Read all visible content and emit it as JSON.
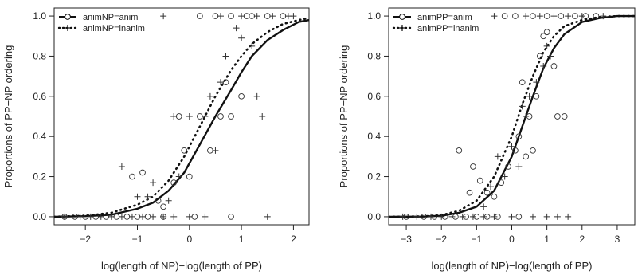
{
  "chart_data": [
    {
      "type": "scatter",
      "xlabel": "log(length of NP)−log(length of PP)",
      "ylabel": "Proportions of PP−NP ordering",
      "xlim": [
        -2.6,
        2.3
      ],
      "ylim": [
        -0.04,
        1.04
      ],
      "xticks": [
        -2,
        -1,
        0,
        1,
        2
      ],
      "xtick_labels": [
        "−2",
        "−1",
        "0",
        "1",
        "2"
      ],
      "yticks": [
        0.0,
        0.2,
        0.4,
        0.6,
        0.8,
        1.0
      ],
      "ytick_labels": [
        "0.0",
        "0.2",
        "0.4",
        "0.6",
        "0.8",
        "1.0"
      ],
      "legend": {
        "position": "top-left",
        "entries": [
          "animNP=anim",
          "animNP=inanim"
        ]
      },
      "series": [
        {
          "name": "animNP=anim",
          "marker": "circle",
          "line": "solid",
          "points": [
            [
              -2.4,
              0
            ],
            [
              -2.2,
              0
            ],
            [
              -2.0,
              0
            ],
            [
              -1.8,
              0
            ],
            [
              -1.6,
              0
            ],
            [
              -1.4,
              0
            ],
            [
              -1.2,
              0
            ],
            [
              -1.0,
              0
            ],
            [
              -0.8,
              0
            ],
            [
              -0.5,
              0
            ],
            [
              0.1,
              0
            ],
            [
              0.8,
              0
            ],
            [
              -1.1,
              0.2
            ],
            [
              -0.9,
              0.22
            ],
            [
              -0.6,
              0.08
            ],
            [
              -0.3,
              0.17
            ],
            [
              0.0,
              0.2
            ],
            [
              0.2,
              0.5
            ],
            [
              0.4,
              0.33
            ],
            [
              0.6,
              0.5
            ],
            [
              0.8,
              0.5
            ],
            [
              1.0,
              0.6
            ],
            [
              0.7,
              0.67
            ],
            [
              -0.2,
              0.5
            ],
            [
              -0.1,
              0.33
            ],
            [
              -0.5,
              0.05
            ],
            [
              0.2,
              1
            ],
            [
              0.5,
              1
            ],
            [
              0.8,
              1
            ],
            [
              1.1,
              1
            ],
            [
              1.2,
              1
            ],
            [
              1.5,
              1
            ],
            [
              1.8,
              1
            ]
          ],
          "curve": {
            "x": [
              -2.6,
              -2.0,
              -1.5,
              -1.0,
              -0.7,
              -0.4,
              -0.1,
              0.2,
              0.5,
              0.8,
              1.0,
              1.2,
              1.5,
              1.8,
              2.1,
              2.3
            ],
            "y": [
              0.0,
              0.003,
              0.01,
              0.04,
              0.07,
              0.13,
              0.22,
              0.36,
              0.5,
              0.63,
              0.72,
              0.8,
              0.88,
              0.93,
              0.97,
              0.98
            ]
          }
        },
        {
          "name": "animNP=inanim",
          "marker": "plus",
          "line": "dotted",
          "points": [
            [
              -2.4,
              0
            ],
            [
              -2.1,
              0
            ],
            [
              -1.9,
              0
            ],
            [
              -1.7,
              0
            ],
            [
              -1.5,
              0
            ],
            [
              -1.3,
              0
            ],
            [
              -1.1,
              0
            ],
            [
              -0.9,
              0
            ],
            [
              -0.7,
              0
            ],
            [
              -0.5,
              0
            ],
            [
              -0.3,
              0
            ],
            [
              0,
              0
            ],
            [
              0.3,
              0
            ],
            [
              1.5,
              0
            ],
            [
              -1.3,
              0.25
            ],
            [
              -1.0,
              0.1
            ],
            [
              -0.7,
              0.17
            ],
            [
              -0.4,
              0.08
            ],
            [
              -0.2,
              0.2
            ],
            [
              -0.3,
              0.5
            ],
            [
              0.0,
              0.5
            ],
            [
              0.3,
              0.5
            ],
            [
              0.5,
              0.33
            ],
            [
              0.4,
              0.6
            ],
            [
              0.7,
              0.8
            ],
            [
              0.9,
              0.94
            ],
            [
              1.0,
              0.89
            ],
            [
              1.2,
              0.85
            ],
            [
              1.3,
              0.6
            ],
            [
              1.4,
              0.5
            ],
            [
              0.6,
              0.67
            ],
            [
              -0.8,
              0.1
            ],
            [
              -0.5,
              1
            ],
            [
              0.6,
              1
            ],
            [
              1.0,
              1
            ],
            [
              1.3,
              1
            ],
            [
              1.6,
              1
            ],
            [
              1.9,
              1
            ],
            [
              2.0,
              1
            ]
          ],
          "curve": {
            "x": [
              -2.6,
              -2.0,
              -1.5,
              -1.0,
              -0.7,
              -0.4,
              -0.1,
              0.2,
              0.5,
              0.8,
              1.0,
              1.2,
              1.5,
              1.8,
              2.1,
              2.3
            ],
            "y": [
              0.0,
              0.005,
              0.02,
              0.06,
              0.1,
              0.18,
              0.3,
              0.45,
              0.6,
              0.73,
              0.8,
              0.86,
              0.92,
              0.96,
              0.98,
              0.99
            ]
          }
        }
      ]
    },
    {
      "type": "scatter",
      "xlabel": "log(length of NP)−log(length of PP)",
      "ylabel": "Proportions of PP−NP ordering",
      "xlim": [
        -3.5,
        3.5
      ],
      "ylim": [
        -0.04,
        1.04
      ],
      "xticks": [
        -3,
        -2,
        -1,
        0,
        1,
        2,
        3
      ],
      "xtick_labels": [
        "−3",
        "−2",
        "−1",
        "0",
        "1",
        "2",
        "3"
      ],
      "yticks": [
        0.0,
        0.2,
        0.4,
        0.6,
        0.8,
        1.0
      ],
      "ytick_labels": [
        "0.0",
        "0.2",
        "0.4",
        "0.6",
        "0.8",
        "1.0"
      ],
      "legend": {
        "position": "top-left",
        "entries": [
          "animPP=anim",
          "animPP=inanim"
        ]
      },
      "series": [
        {
          "name": "animPP=anim",
          "marker": "circle",
          "line": "solid",
          "points": [
            [
              -3.0,
              0
            ],
            [
              -2.5,
              0
            ],
            [
              -2.2,
              0
            ],
            [
              -1.9,
              0
            ],
            [
              -1.6,
              0
            ],
            [
              -1.3,
              0
            ],
            [
              -1.0,
              0
            ],
            [
              -0.7,
              0
            ],
            [
              -0.4,
              0
            ],
            [
              0.2,
              0
            ],
            [
              -1.5,
              0.33
            ],
            [
              -1.1,
              0.25
            ],
            [
              -0.9,
              0.18
            ],
            [
              -1.2,
              0.12
            ],
            [
              -0.7,
              0.12
            ],
            [
              -0.5,
              0.1
            ],
            [
              -0.3,
              0.17
            ],
            [
              -0.1,
              0.25
            ],
            [
              0.1,
              0.33
            ],
            [
              0.2,
              0.4
            ],
            [
              0.4,
              0.3
            ],
            [
              0.5,
              0.5
            ],
            [
              0.7,
              0.6
            ],
            [
              0.8,
              0.8
            ],
            [
              0.9,
              0.9
            ],
            [
              1.0,
              0.92
            ],
            [
              1.2,
              0.75
            ],
            [
              1.3,
              0.5
            ],
            [
              1.5,
              0.5
            ],
            [
              0.6,
              0.33
            ],
            [
              0.3,
              0.67
            ],
            [
              -0.2,
              1
            ],
            [
              0.1,
              1
            ],
            [
              0.6,
              1
            ],
            [
              1.0,
              1
            ],
            [
              1.4,
              1
            ],
            [
              1.8,
              1
            ],
            [
              2.1,
              1
            ],
            [
              2.4,
              1
            ]
          ],
          "curve": {
            "x": [
              -3.5,
              -2.5,
              -2.0,
              -1.5,
              -1.0,
              -0.5,
              0.0,
              0.3,
              0.6,
              0.9,
              1.2,
              1.5,
              2.0,
              2.5,
              3.0,
              3.5
            ],
            "y": [
              0.0,
              0.001,
              0.005,
              0.02,
              0.05,
              0.13,
              0.3,
              0.45,
              0.6,
              0.74,
              0.84,
              0.91,
              0.97,
              0.99,
              1.0,
              1.0
            ]
          }
        },
        {
          "name": "animPP=inanim",
          "marker": "plus",
          "line": "dotted",
          "points": [
            [
              -3.1,
              0
            ],
            [
              -2.7,
              0
            ],
            [
              -2.3,
              0
            ],
            [
              -2.0,
              0
            ],
            [
              -1.7,
              0
            ],
            [
              -1.4,
              0
            ],
            [
              -1.1,
              0
            ],
            [
              -0.8,
              0
            ],
            [
              -0.5,
              0
            ],
            [
              0.0,
              0
            ],
            [
              0.6,
              0
            ],
            [
              1.0,
              0
            ],
            [
              1.3,
              0
            ],
            [
              1.6,
              0
            ],
            [
              -0.8,
              0.05
            ],
            [
              -0.6,
              0.15
            ],
            [
              -0.2,
              0.2
            ],
            [
              -0.4,
              0.3
            ],
            [
              0.0,
              0.35
            ],
            [
              0.2,
              0.25
            ],
            [
              0.4,
              0.5
            ],
            [
              0.5,
              0.6
            ],
            [
              0.7,
              0.67
            ],
            [
              0.9,
              0.75
            ],
            [
              1.0,
              0.85
            ],
            [
              1.1,
              0.8
            ],
            [
              0.3,
              0.55
            ],
            [
              -0.5,
              1
            ],
            [
              0.4,
              1
            ],
            [
              0.8,
              1
            ],
            [
              1.2,
              1
            ],
            [
              1.6,
              1
            ],
            [
              2.0,
              1
            ],
            [
              2.6,
              1
            ]
          ],
          "curve": {
            "x": [
              -3.5,
              -2.5,
              -2.0,
              -1.5,
              -1.0,
              -0.5,
              0.0,
              0.3,
              0.6,
              0.9,
              1.2,
              1.5,
              2.0,
              2.5,
              3.0,
              3.5
            ],
            "y": [
              0.0,
              0.002,
              0.008,
              0.03,
              0.08,
              0.2,
              0.4,
              0.56,
              0.7,
              0.82,
              0.9,
              0.95,
              0.98,
              0.995,
              1.0,
              1.0
            ]
          }
        }
      ]
    }
  ]
}
